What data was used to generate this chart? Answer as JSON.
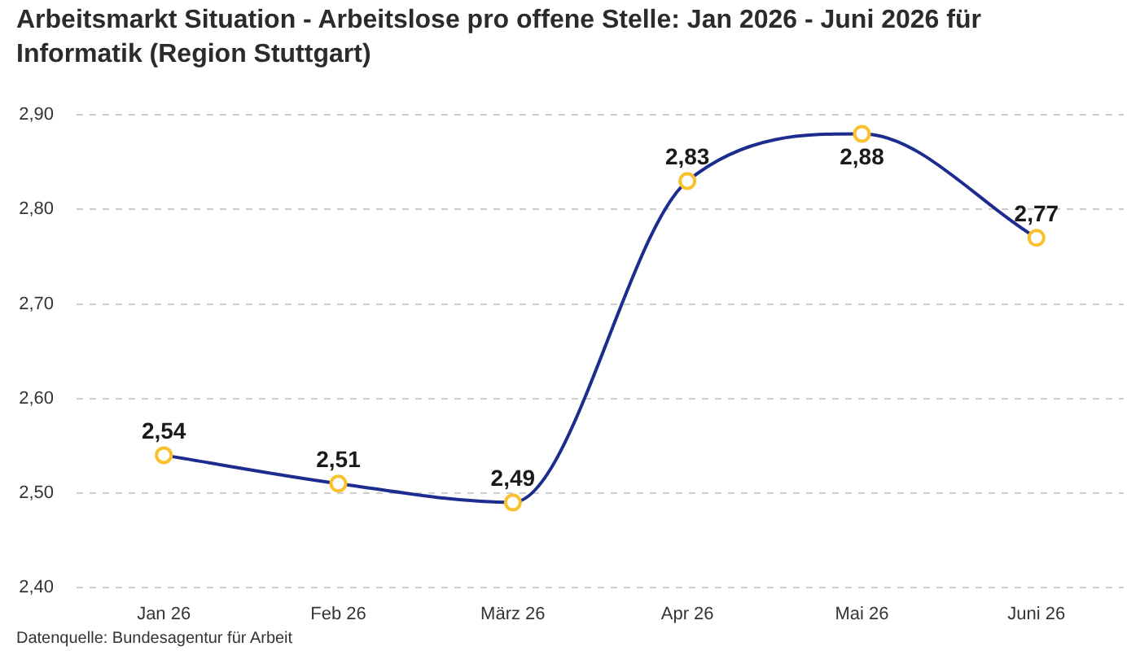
{
  "chart_data": {
    "type": "line",
    "title": "Arbeitsmarkt Situation - Arbeitslose pro offene Stelle: Jan 2026 - Juni 2026 für Informatik (Region Stuttgart)",
    "categories": [
      "Jan 26",
      "Feb 26",
      "März 26",
      "Apr 26",
      "Mai 26",
      "Juni 26"
    ],
    "series": [
      {
        "color": "#1c2d8f",
        "colors": [
          "#fbc02d",
          "#fbc02d",
          "#fbc02d",
          "#fbc02d",
          "#fbc02d",
          "#fbc02d"
        ],
        "values": [
          2.54,
          2.51,
          2.49,
          2.83,
          2.88,
          2.77
        ],
        "value_labels": [
          "2,54",
          "2,51",
          "2,49",
          "2,83",
          "2,88",
          "2,77"
        ]
      }
    ],
    "ylim": [
      2.4,
      2.9
    ],
    "yticks": [
      {
        "value": 2.4,
        "label": "2,40"
      },
      {
        "value": 2.5,
        "label": "2,50"
      },
      {
        "value": 2.6,
        "label": "2,60"
      },
      {
        "value": 2.7,
        "label": "2,70"
      },
      {
        "value": 2.8,
        "label": "2,80"
      },
      {
        "value": 2.9,
        "label": "2,90"
      }
    ],
    "grid": "y",
    "legend": false,
    "marker": "circle",
    "line_style": "solid",
    "annotations": [
      "Datenquelle: Bundesagentur für Arbeit"
    ]
  }
}
